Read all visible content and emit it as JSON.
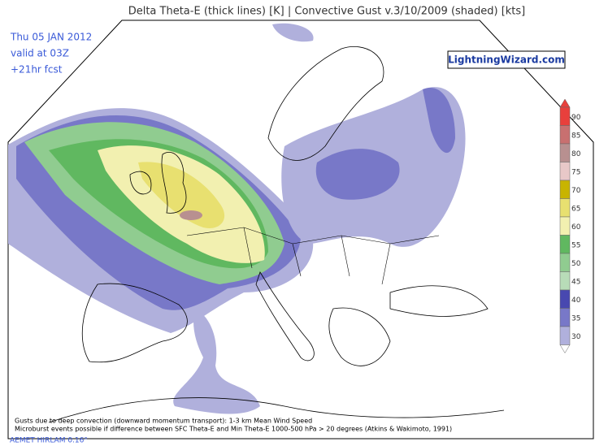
{
  "header": {
    "title": "Delta Theta-E (thick lines) [K]  |  Convective Gust v.3/10/2009 (shaded) [kts]",
    "info": [
      "Thu 05 JAN 2012",
      "valid at 03Z",
      "+21hr fcst"
    ],
    "logo": "LightningWizard.com"
  },
  "legend": {
    "values": [
      90,
      85,
      80,
      75,
      70,
      65,
      60,
      55,
      50,
      45,
      40,
      35,
      30
    ],
    "colors": [
      "#e8403c",
      "#c87070",
      "#b89090",
      "#e8c8c8",
      "#c8b400",
      "#e8e070",
      "#f2f0b0",
      "#60b860",
      "#90cc90",
      "#b8dcb8",
      "#4848b0",
      "#7878c8",
      "#b0b0dc"
    ]
  },
  "footer": {
    "notes": [
      "Gusts due to deep convection (downward momentum transport): 1-3 km Mean Wind Speed",
      "Microburst events possible if difference between SFC Theta-E and Min Theta-E 1000-500 hPa > 20 degrees (Atkins & Wakimoto, 1991)"
    ],
    "model": "AEMET HIRLAM 0.16°"
  }
}
